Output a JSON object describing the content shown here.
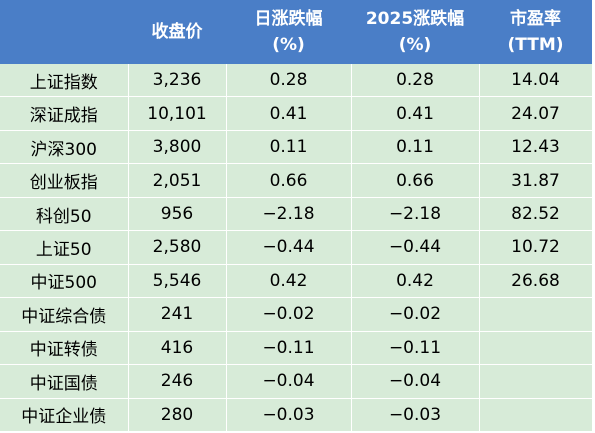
{
  "chart_data": {
    "type": "table",
    "columns": [
      "",
      "收盘价",
      "日涨跌幅\n(%)",
      "2025涨跌幅\n(%)",
      "市盈率\n(TTM)"
    ],
    "header": {
      "c0": "",
      "c1": "收盘价",
      "c2a": "日涨跌幅",
      "c2b": "(%)",
      "c3a": "2025涨跌幅",
      "c3b": "(%)",
      "c4a": "市盈率",
      "c4b": "(TTM)"
    },
    "rows": [
      {
        "name": "上证指数",
        "close": "3,236",
        "day": "0.28",
        "ytd": "0.28",
        "pe": "14.04"
      },
      {
        "name": "深证成指",
        "close": "10,101",
        "day": "0.41",
        "ytd": "0.41",
        "pe": "24.07"
      },
      {
        "name": "沪深300",
        "close": "3,800",
        "day": "0.11",
        "ytd": "0.11",
        "pe": "12.43"
      },
      {
        "name": "创业板指",
        "close": "2,051",
        "day": "0.66",
        "ytd": "0.66",
        "pe": "31.87"
      },
      {
        "name": "科创50",
        "close": "956",
        "day": "−2.18",
        "ytd": "−2.18",
        "pe": "82.52"
      },
      {
        "name": "上证50",
        "close": "2,580",
        "day": "−0.44",
        "ytd": "−0.44",
        "pe": "10.72"
      },
      {
        "name": "中证500",
        "close": "5,546",
        "day": "0.42",
        "ytd": "0.42",
        "pe": "26.68"
      },
      {
        "name": "中证综合债",
        "close": "241",
        "day": "−0.02",
        "ytd": "−0.02",
        "pe": ""
      },
      {
        "name": "中证转债",
        "close": "416",
        "day": "−0.11",
        "ytd": "−0.11",
        "pe": ""
      },
      {
        "name": "中证国债",
        "close": "246",
        "day": "−0.04",
        "ytd": "−0.04",
        "pe": ""
      },
      {
        "name": "中证企业债",
        "close": "280",
        "day": "−0.03",
        "ytd": "−0.03",
        "pe": ""
      }
    ],
    "colors": {
      "header_bg": "#4a7ec7",
      "cell_bg": "#d7ebd8",
      "positive": "#e03232",
      "negative": "#1f7a1f"
    }
  }
}
